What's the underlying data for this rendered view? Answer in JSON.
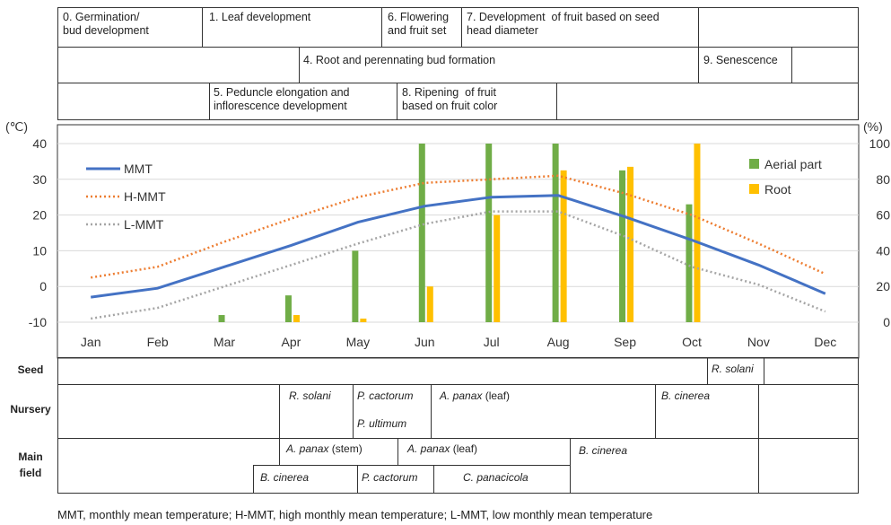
{
  "stages": {
    "row1": [
      {
        "id": "s0",
        "text": "0. Germination/\nbud development"
      },
      {
        "id": "s1",
        "text": "1. Leaf development"
      },
      {
        "id": "s6",
        "text": "6. Flowering\nand fruit set"
      },
      {
        "id": "s7",
        "text": "7. Development  of fruit based on seed\nhead diameter"
      }
    ],
    "row2": [
      {
        "id": "s4",
        "text": "4. Root and perennating bud formation"
      },
      {
        "id": "s9",
        "text": "9. Senescence"
      }
    ],
    "row3": [
      {
        "id": "s5",
        "text": "5. Peduncle elongation and\ninflorescence development"
      },
      {
        "id": "s8",
        "text": "8. Ripening  of fruit\nbased on fruit color"
      }
    ]
  },
  "chart_data": {
    "type": "line+bar",
    "categories": [
      "Jan",
      "Feb",
      "Mar",
      "Apr",
      "May",
      "Jun",
      "Jul",
      "Aug",
      "Sep",
      "Oct",
      "Nov",
      "Dec"
    ],
    "left_axis": {
      "unit": "(℃)",
      "range": [
        -10,
        40
      ],
      "ticks": [
        "-10",
        "0",
        "10",
        "20",
        "30",
        "40"
      ]
    },
    "right_axis": {
      "unit": "(%)",
      "range": [
        0,
        100
      ],
      "ticks": [
        "0",
        "20",
        "40",
        "60",
        "80",
        "100"
      ]
    },
    "lines": [
      {
        "name": "MMT",
        "color": "#4472C4",
        "style": "solid",
        "values": [
          -3,
          -0.5,
          5.5,
          11.5,
          18,
          22.5,
          25,
          25.5,
          19.5,
          13,
          6,
          -2
        ]
      },
      {
        "name": "H-MMT",
        "color": "#ED7D31",
        "style": "dotted",
        "values": [
          2.5,
          5.5,
          12.5,
          19,
          25,
          29,
          30,
          31,
          26,
          20,
          12,
          3.5
        ]
      },
      {
        "name": "L-MMT",
        "color": "#A5A5A5",
        "style": "dotted",
        "values": [
          -9,
          -6,
          0,
          6,
          12,
          17.5,
          21,
          21,
          14,
          5.5,
          0.5,
          -7
        ]
      }
    ],
    "bars": [
      {
        "name": "Aerial part",
        "color": "#70AD47",
        "values": [
          0,
          0,
          4,
          15,
          40,
          100,
          100,
          100,
          85,
          66,
          0,
          0
        ]
      },
      {
        "name": "Root",
        "color": "#FFC000",
        "values": [
          0,
          0,
          0,
          4,
          2,
          20,
          60,
          85,
          87,
          100,
          0,
          0
        ]
      }
    ]
  },
  "pathogens": {
    "seed_label": "Seed",
    "nursery_label": "Nursery",
    "main_label": "Main\nfield",
    "seed": [
      {
        "name": "R. solani"
      }
    ],
    "nursery": [
      {
        "name": "R. solani"
      },
      {
        "name": "P. cactorum"
      },
      {
        "name": "P. ultimum"
      },
      {
        "name": "A. panax",
        "note": " (leaf)"
      },
      {
        "name": "B. cinerea"
      }
    ],
    "main": [
      {
        "name": "A. panax",
        "note": " (stem)"
      },
      {
        "name": "A. panax",
        "note": " (leaf)"
      },
      {
        "name": "B. cinerea"
      },
      {
        "name": "B. cinerea"
      },
      {
        "name": "P. cactorum"
      },
      {
        "name": "C. panacicola"
      }
    ]
  },
  "footnote": "MMT,  monthly mean temperature; H-MMT,  high monthly mean temperature; L-MMT,  low monthly mean temperature"
}
